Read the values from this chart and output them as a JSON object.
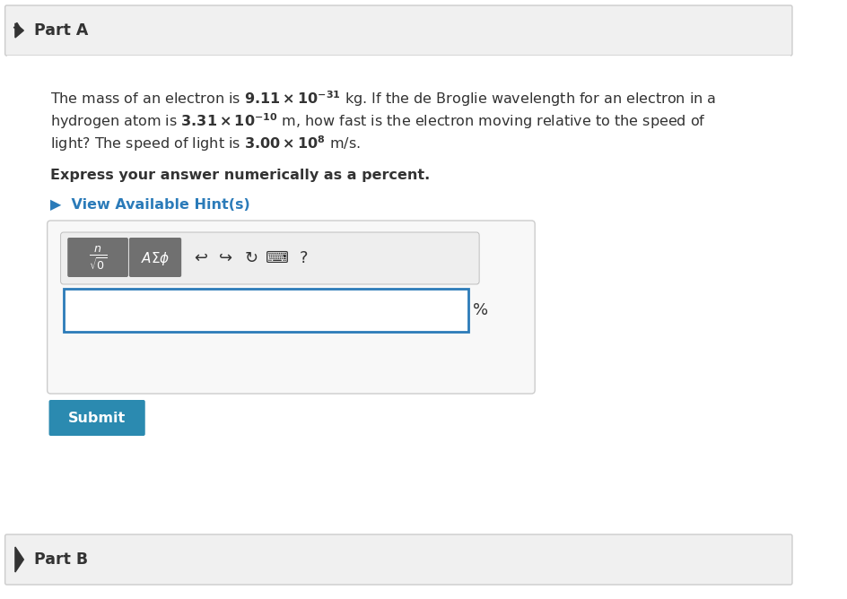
{
  "bg_color": "#f5f5f5",
  "white_bg": "#ffffff",
  "part_a_header_bg": "#f0f0f0",
  "part_b_header_bg": "#f0f0f0",
  "part_a_text": "Part A",
  "part_b_text": "Part B",
  "body_text_line1": "The mass of an electron is 9.11 × 10",
  "body_text_line1_sup": "−31",
  "body_text_line1_end": " kg. If the de Broglie wavelength for an electron in a",
  "body_text_line2": "hydrogen atom is 3.31 × 10",
  "body_text_line2_sup": "−10",
  "body_text_line2_end": " m, how fast is the electron moving relative to the speed of",
  "body_text_line3": "light? The speed of light is 3.00 × 10",
  "body_text_line3_sup": "8",
  "body_text_line3_end": " m/s.",
  "bold_text": "Express your answer numerically as a percent.",
  "hint_text": "▶  View Available Hint(s)",
  "hint_color": "#2b7bb9",
  "submit_text": "Submit",
  "submit_bg": "#2b8ab0",
  "submit_text_color": "#ffffff",
  "toolbar_bg": "#6d6d6d",
  "input_border": "#2b7bb9",
  "percent_text": "%",
  "arrow_color": "#333333",
  "divider_color": "#cccccc",
  "header_border": "#cccccc",
  "text_color": "#333333",
  "font_size_body": 11.5,
  "font_size_header": 12.5,
  "font_size_hint": 11.5,
  "font_size_bold": 11.5,
  "font_size_submit": 11.5
}
